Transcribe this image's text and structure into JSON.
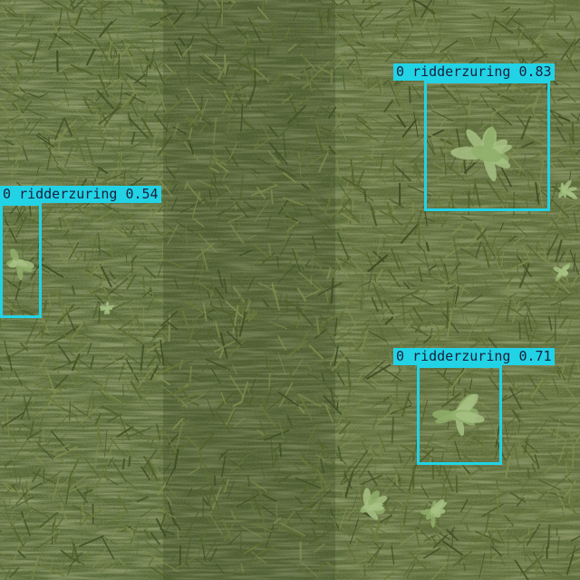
{
  "image": {
    "subject": "grass",
    "colors": {
      "grass_dark": "#3f4f24",
      "grass_mid": "#5d6e35",
      "grass_light": "#7e8c4e",
      "weed": "#8fae6a",
      "box": "#22d3e6",
      "label_text": "#1b1f3a"
    }
  },
  "detections": [
    {
      "class_id": "0",
      "class_name": "ridderzuring",
      "score": "0.83"
    },
    {
      "class_id": "0",
      "class_name": "ridderzuring",
      "score": "0.54"
    },
    {
      "class_id": "0",
      "class_name": "ridderzuring",
      "score": "0.71"
    }
  ]
}
